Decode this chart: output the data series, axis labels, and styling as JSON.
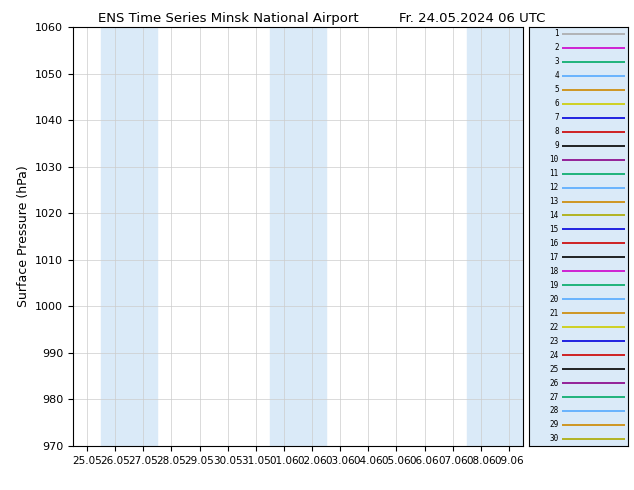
{
  "title_left": "ENS Time Series Minsk National Airport",
  "title_right": "Fr. 24.05.2024 06 UTC",
  "ylabel": "Surface Pressure (hPa)",
  "ylim": [
    970,
    1060
  ],
  "yticks": [
    970,
    980,
    990,
    1000,
    1010,
    1020,
    1030,
    1040,
    1050,
    1060
  ],
  "xtick_labels": [
    "25.05",
    "26.05",
    "27.05",
    "28.05",
    "29.05",
    "30.05",
    "31.05",
    "01.06",
    "02.06",
    "03.06",
    "04.06",
    "05.06",
    "06.06",
    "07.06",
    "08.06",
    "09.06"
  ],
  "shaded_day_indices": [
    1,
    2,
    7,
    8,
    14,
    15
  ],
  "ensemble_colors": [
    "#aaaaaa",
    "#cc00cc",
    "#00aa66",
    "#55aaff",
    "#cc8800",
    "#cccc00",
    "#0000dd",
    "#cc0000",
    "#000000",
    "#880088",
    "#00aa66",
    "#55aaff",
    "#cc8800",
    "#aaaa00",
    "#0000dd",
    "#cc0000",
    "#000000",
    "#cc00cc",
    "#00aa66",
    "#55aaff",
    "#cc8800",
    "#cccc00",
    "#0000dd",
    "#cc0000",
    "#000000",
    "#880088",
    "#00aa66",
    "#55aaff",
    "#cc8800",
    "#aaaa00"
  ],
  "n_members": 30,
  "background_color": "#ffffff",
  "shade_color": "#daeaf8"
}
